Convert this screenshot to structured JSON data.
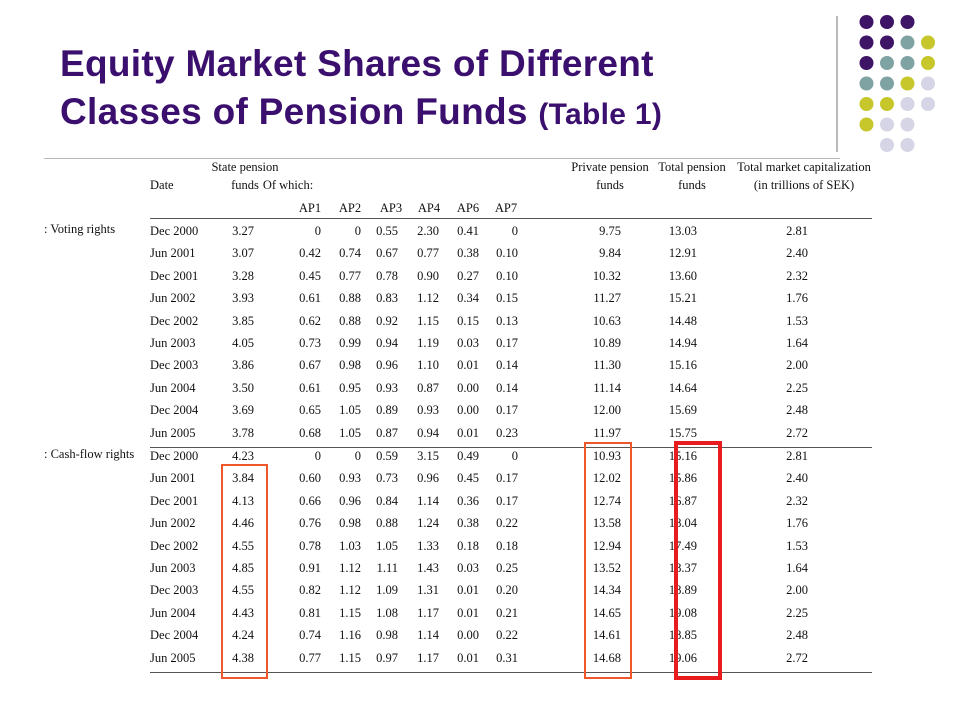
{
  "title": {
    "line1": "Equity Market Shares of Different",
    "line2_main": "Classes of Pension Funds",
    "line2_sub": "(Table 1)"
  },
  "colors": {
    "title": "#3b0f6e",
    "dot_purple": "#3d1466",
    "dot_teal": "#7fa3a3",
    "dot_olive": "#c7c72b",
    "dot_lavender": "#d5d5e6",
    "highlight_orange": "#f0572a",
    "highlight_red": "#e81c1c"
  },
  "table": {
    "headers": {
      "date": "Date",
      "state_line1": "State pension",
      "state_line2": "funds",
      "of_which": "Of which:",
      "ap1": "AP1",
      "ap2": "AP2",
      "ap3": "AP3",
      "ap4": "AP4",
      "ap6": "AP6",
      "ap7": "AP7",
      "private_line1": "Private pension",
      "private_line2": "funds",
      "total_line1": "Total pension",
      "total_line2": "funds",
      "cap_line1": "Total market capitalization",
      "cap_line2": "(in trillions of SEK)"
    },
    "sections": [
      {
        "label": ": Voting rights",
        "rows": [
          [
            "Dec 2000",
            "3.27",
            "0",
            "0",
            "0.55",
            "2.30",
            "0.41",
            "0",
            "9.75",
            "13.03",
            "2.81"
          ],
          [
            "Jun 2001",
            "3.07",
            "0.42",
            "0.74",
            "0.67",
            "0.77",
            "0.38",
            "0.10",
            "9.84",
            "12.91",
            "2.40"
          ],
          [
            "Dec 2001",
            "3.28",
            "0.45",
            "0.77",
            "0.78",
            "0.90",
            "0.27",
            "0.10",
            "10.32",
            "13.60",
            "2.32"
          ],
          [
            "Jun 2002",
            "3.93",
            "0.61",
            "0.88",
            "0.83",
            "1.12",
            "0.34",
            "0.15",
            "11.27",
            "15.21",
            "1.76"
          ],
          [
            "Dec 2002",
            "3.85",
            "0.62",
            "0.88",
            "0.92",
            "1.15",
            "0.15",
            "0.13",
            "10.63",
            "14.48",
            "1.53"
          ],
          [
            "Jun 2003",
            "4.05",
            "0.73",
            "0.99",
            "0.94",
            "1.19",
            "0.03",
            "0.17",
            "10.89",
            "14.94",
            "1.64"
          ],
          [
            "Dec 2003",
            "3.86",
            "0.67",
            "0.98",
            "0.96",
            "1.10",
            "0.01",
            "0.14",
            "11.30",
            "15.16",
            "2.00"
          ],
          [
            "Jun 2004",
            "3.50",
            "0.61",
            "0.95",
            "0.93",
            "0.87",
            "0.00",
            "0.14",
            "11.14",
            "14.64",
            "2.25"
          ],
          [
            "Dec 2004",
            "3.69",
            "0.65",
            "1.05",
            "0.89",
            "0.93",
            "0.00",
            "0.17",
            "12.00",
            "15.69",
            "2.48"
          ],
          [
            "Jun 2005",
            "3.78",
            "0.68",
            "1.05",
            "0.87",
            "0.94",
            "0.01",
            "0.23",
            "11.97",
            "15.75",
            "2.72"
          ]
        ]
      },
      {
        "label": ": Cash-flow rights",
        "rows": [
          [
            "Dec 2000",
            "4.23",
            "0",
            "0",
            "0.59",
            "3.15",
            "0.49",
            "0",
            "10.93",
            "15.16",
            "2.81"
          ],
          [
            "Jun 2001",
            "3.84",
            "0.60",
            "0.93",
            "0.73",
            "0.96",
            "0.45",
            "0.17",
            "12.02",
            "15.86",
            "2.40"
          ],
          [
            "Dec 2001",
            "4.13",
            "0.66",
            "0.96",
            "0.84",
            "1.14",
            "0.36",
            "0.17",
            "12.74",
            "16.87",
            "2.32"
          ],
          [
            "Jun 2002",
            "4.46",
            "0.76",
            "0.98",
            "0.88",
            "1.24",
            "0.38",
            "0.22",
            "13.58",
            "18.04",
            "1.76"
          ],
          [
            "Dec 2002",
            "4.55",
            "0.78",
            "1.03",
            "1.05",
            "1.33",
            "0.18",
            "0.18",
            "12.94",
            "17.49",
            "1.53"
          ],
          [
            "Jun 2003",
            "4.85",
            "0.91",
            "1.12",
            "1.11",
            "1.43",
            "0.03",
            "0.25",
            "13.52",
            "18.37",
            "1.64"
          ],
          [
            "Dec 2003",
            "4.55",
            "0.82",
            "1.12",
            "1.09",
            "1.31",
            "0.01",
            "0.20",
            "14.34",
            "18.89",
            "2.00"
          ],
          [
            "Jun 2004",
            "4.43",
            "0.81",
            "1.15",
            "1.08",
            "1.17",
            "0.01",
            "0.21",
            "14.65",
            "19.08",
            "2.25"
          ],
          [
            "Dec 2004",
            "4.24",
            "0.74",
            "1.16",
            "0.98",
            "1.14",
            "0.00",
            "0.22",
            "14.61",
            "18.85",
            "2.48"
          ],
          [
            "Jun 2005",
            "4.38",
            "0.77",
            "1.15",
            "0.97",
            "1.17",
            "0.01",
            "0.31",
            "14.68",
            "19.06",
            "2.72"
          ]
        ]
      }
    ]
  }
}
